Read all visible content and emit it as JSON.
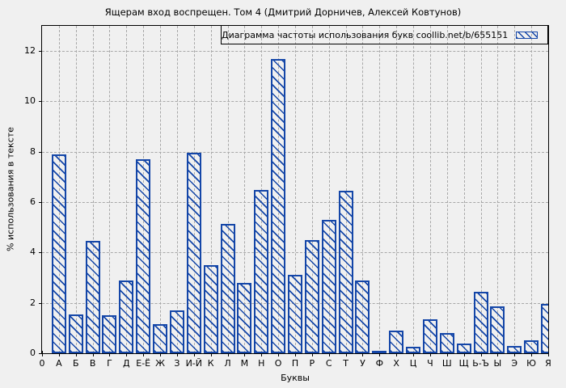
{
  "chart_data": {
    "type": "bar",
    "title": "Ящерам вход воспрещен. Том 4 (Дмитрий Дорничев, Алексей Ковтунов)",
    "legend": "Диаграмма частоты использования букв coollib.net/b/655151",
    "legend_position": "top-right-inside, boxed",
    "xlabel": "Буквы",
    "ylabel": "% использования в тексте",
    "ylim": [
      0,
      13
    ],
    "yticks": [
      0,
      2,
      4,
      6,
      8,
      10,
      12
    ],
    "grid": true,
    "bar_color": "#1446a8",
    "bar_fill": "diagonal-hatch",
    "background_color": "#f0f0f0",
    "grid_color": "#a8a8a8",
    "categories": [
      "0",
      "А",
      "Б",
      "В",
      "Г",
      "Д",
      "Е-Ё",
      "Ж",
      "З",
      "И-Й",
      "К",
      "Л",
      "М",
      "Н",
      "О",
      "П",
      "Р",
      "С",
      "Т",
      "У",
      "Ф",
      "Х",
      "Ц",
      "Ч",
      "Ш",
      "Щ",
      "Ь-Ъ",
      "Ы",
      "Э",
      "Ю",
      "Я"
    ],
    "values": [
      0,
      7.9,
      1.55,
      4.45,
      1.5,
      2.9,
      7.7,
      1.15,
      1.7,
      7.95,
      3.5,
      5.15,
      2.8,
      6.5,
      11.7,
      3.1,
      4.5,
      5.3,
      6.45,
      2.9,
      0.1,
      0.9,
      0.25,
      1.35,
      0.8,
      0.4,
      2.45,
      1.85,
      0.3,
      0.5,
      1.95
    ]
  }
}
